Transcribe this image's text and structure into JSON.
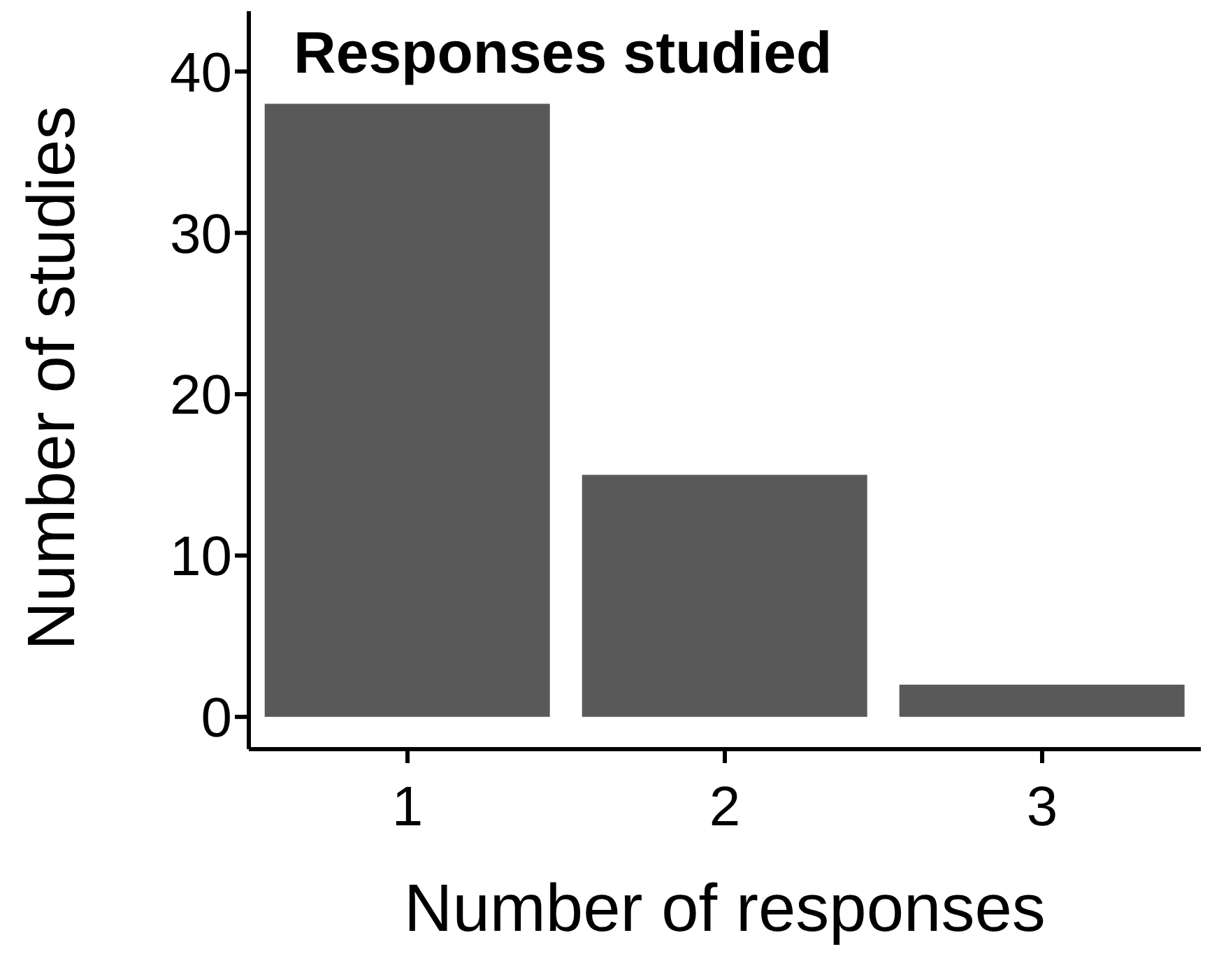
{
  "chart_data": {
    "type": "bar",
    "title": "Responses studied",
    "xlabel": "Number of responses",
    "ylabel": "Number of studies",
    "categories": [
      "1",
      "2",
      "3"
    ],
    "values": [
      38,
      15,
      2
    ],
    "color": "#595959",
    "ylim": [
      -2,
      44
    ],
    "yticks": [
      0,
      10,
      20,
      30,
      40
    ],
    "grid": false
  }
}
